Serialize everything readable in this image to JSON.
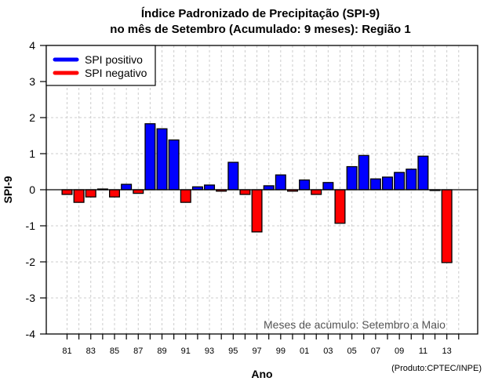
{
  "chart_data": {
    "type": "bar",
    "title": [
      "Índice Padronizado de Precipitação (SPI-9)",
      "no mês de Setembro (Acumulado: 9 meses): Região 1"
    ],
    "xlabel": "Ano",
    "ylabel": "SPI-9",
    "ylim": [
      -4,
      4
    ],
    "xlim": [
      1979.25,
      2015.6
    ],
    "yticks": [
      -4,
      -3,
      -2,
      -1,
      0,
      1,
      2,
      3,
      4
    ],
    "xticks": [
      1981,
      1982,
      1983,
      1984,
      1985,
      1986,
      1987,
      1988,
      1989,
      1990,
      1991,
      1992,
      1993,
      1994,
      1995,
      1996,
      1997,
      1998,
      1999,
      2000,
      2001,
      2002,
      2003,
      2004,
      2005,
      2006,
      2007,
      2008,
      2009,
      2010,
      2011,
      2012,
      2013,
      2014
    ],
    "xtick_labels": [
      "81",
      "",
      "83",
      "",
      "85",
      "",
      "87",
      "",
      "89",
      "",
      "91",
      "",
      "93",
      "",
      "95",
      "",
      "97",
      "",
      "99",
      "",
      "01",
      "",
      "03",
      "",
      "05",
      "",
      "07",
      "",
      "09",
      "",
      "11",
      "",
      "13",
      ""
    ],
    "grid": true,
    "categories": [
      1981,
      1982,
      1983,
      1984,
      1985,
      1986,
      1987,
      1988,
      1989,
      1990,
      1991,
      1992,
      1993,
      1994,
      1995,
      1996,
      1997,
      1998,
      1999,
      2000,
      2001,
      2002,
      2003,
      2004,
      2005,
      2006,
      2007,
      2008,
      2009,
      2010,
      2011,
      2012,
      2013
    ],
    "values": [
      -0.13,
      -0.35,
      -0.2,
      0.02,
      -0.2,
      0.15,
      -0.1,
      1.83,
      1.69,
      1.38,
      -0.35,
      0.08,
      0.13,
      -0.04,
      0.76,
      -0.13,
      -1.17,
      0.11,
      0.41,
      -0.04,
      0.27,
      -0.13,
      0.2,
      -0.93,
      0.64,
      0.95,
      0.3,
      0.35,
      0.48,
      0.57,
      0.93,
      -0.02,
      -2.02
    ],
    "colors": {
      "positive": "#0000ff",
      "negative": "#ff0000"
    },
    "legend": {
      "position": "top-left",
      "entries": [
        {
          "label": "SPI positivo",
          "color": "#0000ff"
        },
        {
          "label": "SPI negativo",
          "color": "#ff0000"
        }
      ]
    },
    "annotation": "Meses de acúmulo: Setembro a Maio",
    "credit": "(Produto:CPTEC/INPE)"
  }
}
